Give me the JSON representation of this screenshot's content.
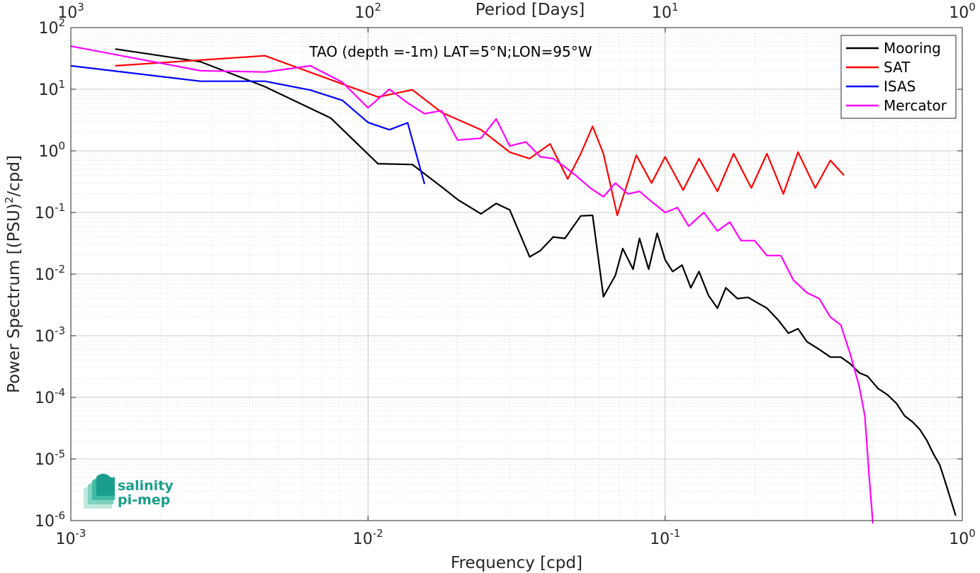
{
  "chart_data": {
    "type": "line",
    "title": "TAO (depth =-1m) LAT=5°N;LON=95°W",
    "xlabel": "Frequency [cpd]",
    "ylabel_main": "Power Spectrum [(PSU)",
    "ylabel_sup": "2",
    "ylabel_tail": "/cpd]",
    "top_xlabel": "Period [Days]",
    "xscale": "log",
    "yscale": "log",
    "xlim": [
      0.001,
      1
    ],
    "ylim": [
      1e-06,
      100
    ],
    "grid": true,
    "legend_position": "top-right",
    "x_ticks": [
      {
        "value": 0.001,
        "base": "10",
        "exp": "-3"
      },
      {
        "value": 0.01,
        "base": "10",
        "exp": "-2"
      },
      {
        "value": 0.1,
        "base": "10",
        "exp": "-1"
      },
      {
        "value": 1,
        "base": "10",
        "exp": "0"
      }
    ],
    "y_ticks": [
      {
        "value": 1e-06,
        "base": "10",
        "exp": "-6"
      },
      {
        "value": 1e-05,
        "base": "10",
        "exp": "-5"
      },
      {
        "value": 0.0001,
        "base": "10",
        "exp": "-4"
      },
      {
        "value": 0.001,
        "base": "10",
        "exp": "-3"
      },
      {
        "value": 0.01,
        "base": "10",
        "exp": "-2"
      },
      {
        "value": 0.1,
        "base": "10",
        "exp": "-1"
      },
      {
        "value": 1,
        "base": "10",
        "exp": "0"
      },
      {
        "value": 10,
        "base": "10",
        "exp": "1"
      },
      {
        "value": 100,
        "base": "10",
        "exp": "2"
      }
    ],
    "top_ticks": [
      {
        "value": 0.001,
        "base": "10",
        "exp": "3"
      },
      {
        "value": 0.01,
        "base": "10",
        "exp": "2"
      },
      {
        "value": 0.1,
        "base": "10",
        "exp": "1"
      },
      {
        "value": 1,
        "base": "10",
        "exp": "0"
      }
    ],
    "series": [
      {
        "name": "Mooring",
        "color": "#000000",
        "x": [
          0.00141,
          0.00273,
          0.0045,
          0.0075,
          0.0108,
          0.0141,
          0.0177,
          0.0201,
          0.024,
          0.027,
          0.03,
          0.035,
          0.038,
          0.042,
          0.046,
          0.052,
          0.057,
          0.062,
          0.068,
          0.072,
          0.078,
          0.082,
          0.088,
          0.094,
          0.1,
          0.106,
          0.114,
          0.122,
          0.13,
          0.14,
          0.15,
          0.16,
          0.175,
          0.19,
          0.205,
          0.22,
          0.24,
          0.26,
          0.28,
          0.3,
          0.33,
          0.36,
          0.39,
          0.42,
          0.45,
          0.48,
          0.52,
          0.56,
          0.6,
          0.64,
          0.68,
          0.72,
          0.76,
          0.8,
          0.84,
          0.88,
          0.92,
          0.95
        ],
        "y": [
          45,
          28,
          11,
          3.4,
          0.62,
          0.6,
          0.26,
          0.16,
          0.095,
          0.14,
          0.11,
          0.019,
          0.024,
          0.04,
          0.038,
          0.088,
          0.09,
          0.0043,
          0.0095,
          0.026,
          0.012,
          0.038,
          0.012,
          0.046,
          0.017,
          0.011,
          0.014,
          0.006,
          0.011,
          0.0045,
          0.0028,
          0.006,
          0.004,
          0.0042,
          0.0034,
          0.0028,
          0.0018,
          0.0011,
          0.0013,
          0.0008,
          0.0006,
          0.00045,
          0.00045,
          0.00035,
          0.00025,
          0.00022,
          0.00014,
          0.00011,
          8e-05,
          5e-05,
          4e-05,
          3e-05,
          2e-05,
          1.2e-05,
          8e-06,
          4e-06,
          2e-06,
          1.2e-06
        ]
      },
      {
        "name": "SAT",
        "color": "#ff0000",
        "x": [
          0.00141,
          0.0045,
          0.0108,
          0.0141,
          0.0177,
          0.024,
          0.03,
          0.035,
          0.041,
          0.047,
          0.052,
          0.057,
          0.062,
          0.069,
          0.08,
          0.09,
          0.1,
          0.115,
          0.13,
          0.15,
          0.17,
          0.195,
          0.22,
          0.25,
          0.28,
          0.32,
          0.36,
          0.4
        ],
        "y": [
          24,
          35,
          7.5,
          9.8,
          4.2,
          2.2,
          0.95,
          0.75,
          1.3,
          0.35,
          0.9,
          2.5,
          0.9,
          0.09,
          0.85,
          0.3,
          0.8,
          0.23,
          0.75,
          0.22,
          0.9,
          0.25,
          0.9,
          0.2,
          0.95,
          0.25,
          0.7,
          0.4
        ]
      },
      {
        "name": "ISAS",
        "color": "#0000ff",
        "x": [
          0.001,
          0.00273,
          0.0045,
          0.0064,
          0.0082,
          0.01,
          0.0118,
          0.0136,
          0.0155
        ],
        "y": [
          24,
          13.5,
          13.5,
          9.7,
          6.6,
          2.9,
          2.2,
          2.85,
          0.29
        ]
      },
      {
        "name": "Mercator",
        "color": "#ff00ff",
        "x": [
          0.001,
          0.00273,
          0.0045,
          0.0064,
          0.0082,
          0.01,
          0.0118,
          0.0136,
          0.0155,
          0.0177,
          0.02,
          0.024,
          0.027,
          0.03,
          0.034,
          0.038,
          0.042,
          0.046,
          0.05,
          0.056,
          0.062,
          0.068,
          0.075,
          0.082,
          0.09,
          0.1,
          0.11,
          0.12,
          0.135,
          0.15,
          0.165,
          0.18,
          0.2,
          0.22,
          0.245,
          0.27,
          0.3,
          0.33,
          0.36,
          0.39,
          0.42,
          0.45,
          0.47,
          0.485,
          0.5
        ],
        "y": [
          50,
          20,
          19,
          24,
          13,
          5,
          10,
          6,
          4,
          4.5,
          1.5,
          1.6,
          3.3,
          1.2,
          1.4,
          0.8,
          0.75,
          0.55,
          0.4,
          0.25,
          0.18,
          0.3,
          0.2,
          0.22,
          0.15,
          0.1,
          0.12,
          0.06,
          0.1,
          0.05,
          0.07,
          0.035,
          0.035,
          0.02,
          0.02,
          0.008,
          0.005,
          0.004,
          0.002,
          0.0015,
          0.0005,
          0.00015,
          5e-05,
          6e-06,
          9e-07
        ]
      }
    ]
  },
  "logo": {
    "line1": "salinity",
    "line2": "pi-mep",
    "icon": "stacked-waves-icon",
    "color": "#1a9e8c"
  }
}
